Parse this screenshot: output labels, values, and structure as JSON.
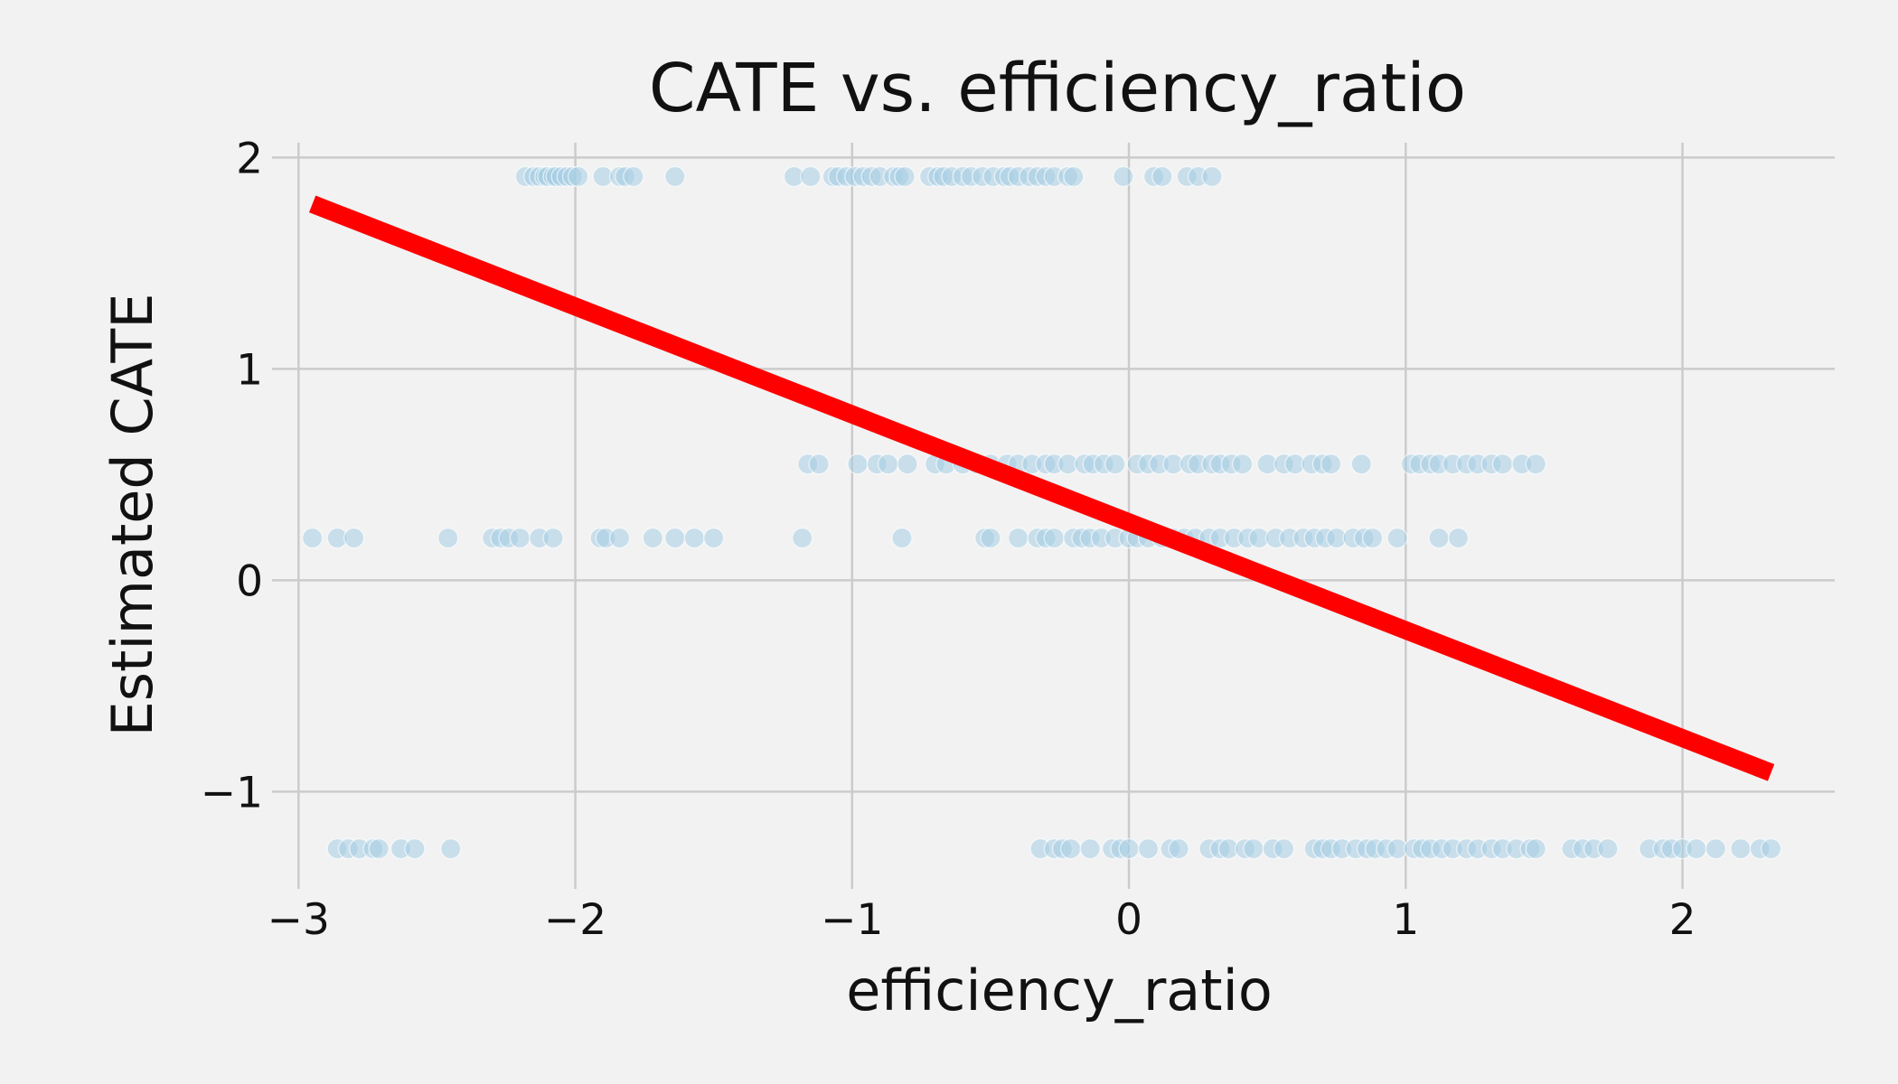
{
  "chart_data": {
    "type": "scatter",
    "title": "CATE vs. efficiency_ratio",
    "xlabel": "efficiency_ratio",
    "ylabel": "Estimated CATE",
    "xlim": [
      -3.05,
      2.55
    ],
    "ylim": [
      -1.4,
      2.07
    ],
    "grid": true,
    "xticks": [
      -3,
      -2,
      -1,
      0,
      1,
      2
    ],
    "xtick_labels": [
      "−3",
      "−2",
      "−1",
      "0",
      "1",
      "2"
    ],
    "yticks": [
      -1,
      0,
      1,
      2
    ],
    "ytick_labels": [
      "−1",
      "0",
      "1",
      "2"
    ],
    "point_color": "#a6cee3",
    "line_color": "#ff0000",
    "background": "#f2f2f2",
    "series": [
      {
        "type": "scatter",
        "points": [
          [
            -2.18,
            1.91
          ],
          [
            -2.15,
            1.91
          ],
          [
            -2.13,
            1.91
          ],
          [
            -2.11,
            1.91
          ],
          [
            -2.1,
            1.91
          ],
          [
            -2.08,
            1.91
          ],
          [
            -2.07,
            1.91
          ],
          [
            -2.05,
            1.91
          ],
          [
            -2.03,
            1.91
          ],
          [
            -2.01,
            1.91
          ],
          [
            -1.99,
            1.91
          ],
          [
            -1.9,
            1.91
          ],
          [
            -1.84,
            1.91
          ],
          [
            -1.82,
            1.91
          ],
          [
            -1.79,
            1.91
          ],
          [
            -1.64,
            1.91
          ],
          [
            -1.21,
            1.91
          ],
          [
            -1.15,
            1.91
          ],
          [
            -1.07,
            1.91
          ],
          [
            -1.05,
            1.91
          ],
          [
            -1.02,
            1.91
          ],
          [
            -0.99,
            1.91
          ],
          [
            -0.96,
            1.91
          ],
          [
            -0.93,
            1.91
          ],
          [
            -0.9,
            1.91
          ],
          [
            -0.85,
            1.91
          ],
          [
            -0.83,
            1.91
          ],
          [
            -0.81,
            1.91
          ],
          [
            -0.72,
            1.91
          ],
          [
            -0.69,
            1.91
          ],
          [
            -0.67,
            1.91
          ],
          [
            -0.64,
            1.91
          ],
          [
            -0.6,
            1.91
          ],
          [
            -0.57,
            1.91
          ],
          [
            -0.53,
            1.91
          ],
          [
            -0.49,
            1.91
          ],
          [
            -0.45,
            1.91
          ],
          [
            -0.43,
            1.91
          ],
          [
            -0.4,
            1.91
          ],
          [
            -0.36,
            1.91
          ],
          [
            -0.33,
            1.91
          ],
          [
            -0.3,
            1.91
          ],
          [
            -0.27,
            1.91
          ],
          [
            -0.22,
            1.91
          ],
          [
            -0.2,
            1.91
          ],
          [
            -0.02,
            1.91
          ],
          [
            0.09,
            1.91
          ],
          [
            0.12,
            1.91
          ],
          [
            0.21,
            1.91
          ],
          [
            0.25,
            1.91
          ],
          [
            0.3,
            1.91
          ],
          [
            -1.16,
            0.55
          ],
          [
            -1.12,
            0.55
          ],
          [
            -0.98,
            0.55
          ],
          [
            -0.91,
            0.55
          ],
          [
            -0.87,
            0.55
          ],
          [
            -0.8,
            0.55
          ],
          [
            -0.7,
            0.55
          ],
          [
            -0.66,
            0.55
          ],
          [
            -0.6,
            0.55
          ],
          [
            -0.55,
            0.55
          ],
          [
            -0.5,
            0.55
          ],
          [
            -0.44,
            0.55
          ],
          [
            -0.4,
            0.55
          ],
          [
            -0.35,
            0.55
          ],
          [
            -0.3,
            0.55
          ],
          [
            -0.27,
            0.55
          ],
          [
            -0.22,
            0.55
          ],
          [
            -0.16,
            0.55
          ],
          [
            -0.13,
            0.55
          ],
          [
            -0.09,
            0.55
          ],
          [
            -0.05,
            0.55
          ],
          [
            0.03,
            0.55
          ],
          [
            0.07,
            0.55
          ],
          [
            0.11,
            0.55
          ],
          [
            0.16,
            0.55
          ],
          [
            0.22,
            0.55
          ],
          [
            0.25,
            0.55
          ],
          [
            0.3,
            0.55
          ],
          [
            0.33,
            0.55
          ],
          [
            0.37,
            0.55
          ],
          [
            0.41,
            0.55
          ],
          [
            0.5,
            0.55
          ],
          [
            0.56,
            0.55
          ],
          [
            0.6,
            0.55
          ],
          [
            0.66,
            0.55
          ],
          [
            0.7,
            0.55
          ],
          [
            0.73,
            0.55
          ],
          [
            0.84,
            0.55
          ],
          [
            1.02,
            0.55
          ],
          [
            1.05,
            0.55
          ],
          [
            1.09,
            0.55
          ],
          [
            1.12,
            0.55
          ],
          [
            1.17,
            0.55
          ],
          [
            1.22,
            0.55
          ],
          [
            1.26,
            0.55
          ],
          [
            1.31,
            0.55
          ],
          [
            1.35,
            0.55
          ],
          [
            1.42,
            0.55
          ],
          [
            1.47,
            0.55
          ],
          [
            -2.95,
            0.2
          ],
          [
            -2.86,
            0.2
          ],
          [
            -2.8,
            0.2
          ],
          [
            -2.46,
            0.2
          ],
          [
            -2.3,
            0.2
          ],
          [
            -2.27,
            0.2
          ],
          [
            -2.24,
            0.2
          ],
          [
            -2.2,
            0.2
          ],
          [
            -2.13,
            0.2
          ],
          [
            -2.08,
            0.2
          ],
          [
            -1.91,
            0.2
          ],
          [
            -1.89,
            0.2
          ],
          [
            -1.84,
            0.2
          ],
          [
            -1.72,
            0.2
          ],
          [
            -1.64,
            0.2
          ],
          [
            -1.57,
            0.2
          ],
          [
            -1.5,
            0.2
          ],
          [
            -1.18,
            0.2
          ],
          [
            -0.82,
            0.2
          ],
          [
            -0.52,
            0.2
          ],
          [
            -0.5,
            0.2
          ],
          [
            -0.4,
            0.2
          ],
          [
            -0.33,
            0.2
          ],
          [
            -0.3,
            0.2
          ],
          [
            -0.27,
            0.2
          ],
          [
            -0.2,
            0.2
          ],
          [
            -0.17,
            0.2
          ],
          [
            -0.14,
            0.2
          ],
          [
            -0.1,
            0.2
          ],
          [
            -0.05,
            0.2
          ],
          [
            0.0,
            0.2
          ],
          [
            0.03,
            0.2
          ],
          [
            0.07,
            0.2
          ],
          [
            0.12,
            0.2
          ],
          [
            0.16,
            0.2
          ],
          [
            0.2,
            0.2
          ],
          [
            0.24,
            0.2
          ],
          [
            0.29,
            0.2
          ],
          [
            0.33,
            0.2
          ],
          [
            0.38,
            0.2
          ],
          [
            0.43,
            0.2
          ],
          [
            0.47,
            0.2
          ],
          [
            0.53,
            0.2
          ],
          [
            0.58,
            0.2
          ],
          [
            0.63,
            0.2
          ],
          [
            0.67,
            0.2
          ],
          [
            0.71,
            0.2
          ],
          [
            0.75,
            0.2
          ],
          [
            0.81,
            0.2
          ],
          [
            0.85,
            0.2
          ],
          [
            0.88,
            0.2
          ],
          [
            0.97,
            0.2
          ],
          [
            1.12,
            0.2
          ],
          [
            1.19,
            0.2
          ],
          [
            -2.86,
            -1.27
          ],
          [
            -2.82,
            -1.27
          ],
          [
            -2.78,
            -1.27
          ],
          [
            -2.73,
            -1.27
          ],
          [
            -2.71,
            -1.27
          ],
          [
            -2.63,
            -1.27
          ],
          [
            -2.58,
            -1.27
          ],
          [
            -2.45,
            -1.27
          ],
          [
            -0.32,
            -1.27
          ],
          [
            -0.27,
            -1.27
          ],
          [
            -0.24,
            -1.27
          ],
          [
            -0.21,
            -1.27
          ],
          [
            -0.14,
            -1.27
          ],
          [
            -0.06,
            -1.27
          ],
          [
            -0.03,
            -1.27
          ],
          [
            0.0,
            -1.27
          ],
          [
            0.07,
            -1.27
          ],
          [
            0.15,
            -1.27
          ],
          [
            0.18,
            -1.27
          ],
          [
            0.29,
            -1.27
          ],
          [
            0.33,
            -1.27
          ],
          [
            0.36,
            -1.27
          ],
          [
            0.42,
            -1.27
          ],
          [
            0.45,
            -1.27
          ],
          [
            0.52,
            -1.27
          ],
          [
            0.56,
            -1.27
          ],
          [
            0.67,
            -1.27
          ],
          [
            0.7,
            -1.27
          ],
          [
            0.73,
            -1.27
          ],
          [
            0.77,
            -1.27
          ],
          [
            0.82,
            -1.27
          ],
          [
            0.86,
            -1.27
          ],
          [
            0.89,
            -1.27
          ],
          [
            0.93,
            -1.27
          ],
          [
            0.97,
            -1.27
          ],
          [
            1.03,
            -1.27
          ],
          [
            1.06,
            -1.27
          ],
          [
            1.09,
            -1.27
          ],
          [
            1.13,
            -1.27
          ],
          [
            1.17,
            -1.27
          ],
          [
            1.22,
            -1.27
          ],
          [
            1.26,
            -1.27
          ],
          [
            1.31,
            -1.27
          ],
          [
            1.35,
            -1.27
          ],
          [
            1.4,
            -1.27
          ],
          [
            1.45,
            -1.27
          ],
          [
            1.47,
            -1.27
          ],
          [
            1.6,
            -1.27
          ],
          [
            1.64,
            -1.27
          ],
          [
            1.68,
            -1.27
          ],
          [
            1.73,
            -1.27
          ],
          [
            1.88,
            -1.27
          ],
          [
            1.93,
            -1.27
          ],
          [
            1.96,
            -1.27
          ],
          [
            2.0,
            -1.27
          ],
          [
            2.05,
            -1.27
          ],
          [
            2.12,
            -1.27
          ],
          [
            2.21,
            -1.27
          ],
          [
            2.28,
            -1.27
          ],
          [
            2.32,
            -1.27
          ]
        ]
      },
      {
        "type": "line",
        "points": [
          [
            -2.95,
            1.78
          ],
          [
            2.32,
            -0.91
          ]
        ]
      }
    ]
  }
}
